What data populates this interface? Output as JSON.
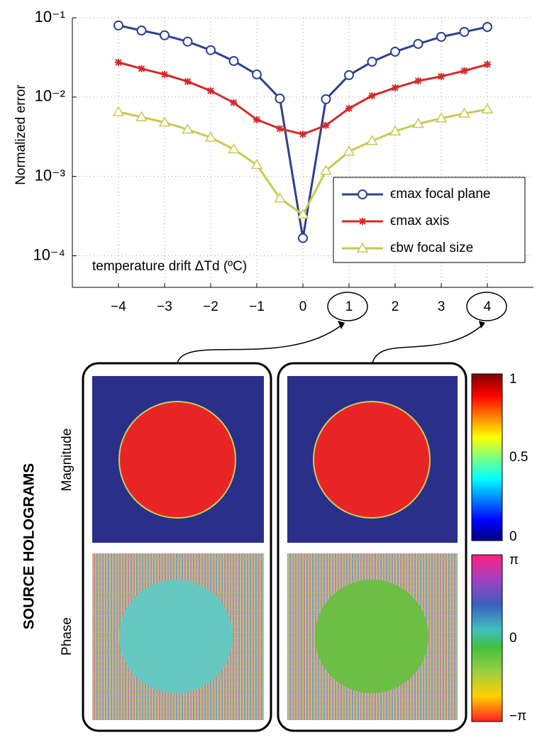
{
  "chart_data": {
    "type": "line",
    "ylabel": "Normalized error",
    "annotation": "temperature drift ΔTd (ºC)",
    "x": [
      -4,
      -3.5,
      -3,
      -2.5,
      -2,
      -1.5,
      -1,
      -0.5,
      0,
      0.5,
      1,
      1.5,
      2,
      2.5,
      3,
      3.5,
      4
    ],
    "series": [
      {
        "name": "ϵmax focal plane",
        "color": "#2e3f8f",
        "marker": "circle",
        "values": [
          0.08,
          0.069,
          0.06,
          0.05,
          0.039,
          0.0285,
          0.0193,
          0.0096,
          0.000167,
          0.0094,
          0.0189,
          0.0279,
          0.0373,
          0.0468,
          0.0574,
          0.0663,
          0.0765
        ]
      },
      {
        "name": "ϵmax axis",
        "color": "#d42a2a",
        "marker": "asterisk",
        "values": [
          0.0274,
          0.0228,
          0.0193,
          0.0157,
          0.012,
          0.0085,
          0.0052,
          0.004,
          0.0034,
          0.0044,
          0.0072,
          0.0104,
          0.0131,
          0.016,
          0.0182,
          0.0214,
          0.0258
        ]
      },
      {
        "name": "ϵbw focal size",
        "color": "#c8c852",
        "marker": "triangle",
        "values": [
          0.0065,
          0.0056,
          0.0048,
          0.0039,
          0.0031,
          0.0022,
          0.0014,
          0.00053,
          0.00033,
          0.00118,
          0.00206,
          0.0028,
          0.0037,
          0.0046,
          0.0054,
          0.0062,
          0.007
        ]
      }
    ],
    "xlim": [
      -5,
      5
    ],
    "xticks": [
      {
        "value": -4,
        "label": "−4"
      },
      {
        "value": -3,
        "label": "−3"
      },
      {
        "value": -2,
        "label": "−2"
      },
      {
        "value": -1,
        "label": "−1"
      },
      0,
      1,
      2,
      3,
      4
    ],
    "ylim": [
      4e-05,
      0.1
    ],
    "yticks": [
      {
        "value": 0.0001,
        "label": "10⁻⁴"
      },
      {
        "value": 0.001,
        "label": "10⁻³"
      },
      {
        "value": 0.01,
        "label": "10⁻²"
      },
      {
        "value": 0.1,
        "label": "10⁻¹"
      }
    ],
    "log_y": true,
    "grid": true,
    "legend": "lower right"
  },
  "figure": {
    "section": "SOURCE HOLOGRAMS",
    "rows": [
      "Magnitude",
      "Phase"
    ],
    "magnitude_colorbar": [
      "1",
      "0.5",
      "0"
    ],
    "phase_colorbar": [
      "π",
      "0",
      "−π"
    ]
  }
}
